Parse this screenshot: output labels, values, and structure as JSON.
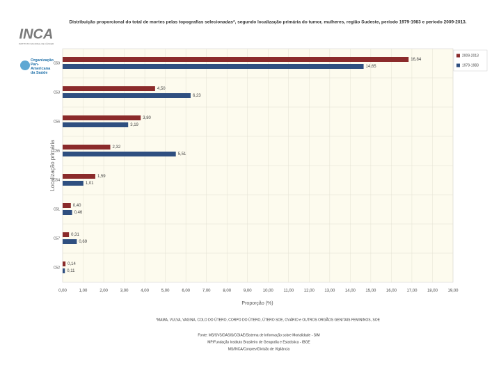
{
  "chart_data": {
    "type": "hbar",
    "title": "Distribuição proporcional do total de mortes pelas topografias selecionadas*, segundo localização primária do tumor, mulheres, região Sudeste, período 1979-1983 e período 2009-2013.",
    "x_label": "Proporção (%)",
    "y_label": "Localização primária",
    "categories": [
      "C50",
      "C53",
      "C56",
      "C55",
      "C54",
      "C51",
      "C57",
      "C52"
    ],
    "series": [
      {
        "name": "2009-2013",
        "color": "#8b2b2b",
        "values": [
          16.84,
          4.5,
          3.8,
          2.32,
          1.59,
          0.4,
          0.31,
          0.14
        ],
        "value_labels": [
          "16,84",
          "4,50",
          "3,80",
          "2,32",
          "1,59",
          "0,40",
          "0,31",
          "0,14"
        ]
      },
      {
        "name": "1979-1983",
        "color": "#2f4f80",
        "values": [
          14.65,
          6.23,
          3.19,
          5.51,
          1.01,
          0.46,
          0.69,
          0.11
        ],
        "value_labels": [
          "14,65",
          "6,23",
          "3,19",
          "5,51",
          "1,01",
          "0,46",
          "0,69",
          "0,11"
        ]
      }
    ],
    "xlim": [
      0,
      19
    ],
    "xticks": [
      {
        "value": 0,
        "label": "0,00"
      },
      {
        "value": 1,
        "label": "1,00"
      },
      {
        "value": 2,
        "label": "2,00"
      },
      {
        "value": 3,
        "label": "3,00"
      },
      {
        "value": 4,
        "label": "4,00"
      },
      {
        "value": 5,
        "label": "5,00"
      },
      {
        "value": 6,
        "label": "6,00"
      },
      {
        "value": 7,
        "label": "7,00"
      },
      {
        "value": 8,
        "label": "8,00"
      },
      {
        "value": 9,
        "label": "9,00"
      },
      {
        "value": 10,
        "label": "10,00"
      },
      {
        "value": 11,
        "label": "11,00"
      },
      {
        "value": 12,
        "label": "12,00"
      },
      {
        "value": 13,
        "label": "13,00"
      },
      {
        "value": 14,
        "label": "14,00"
      },
      {
        "value": 15,
        "label": "15,00"
      },
      {
        "value": 16,
        "label": "16,00"
      },
      {
        "value": 17,
        "label": "17,00"
      },
      {
        "value": 18,
        "label": "18,00"
      },
      {
        "value": 19,
        "label": "19,00"
      }
    ],
    "grid": true,
    "legend_position": "top-right",
    "footnote": "*MAMA, VULVA, VAGINA, COLO DO ÚTERO, CORPO DO ÚTERO, ÚTERO SOE, OVÁRIO e OUTROS ORGÃOS GENITAIS FEMININOS, SOE",
    "sources": [
      "Fonte: MS/SVS/DASIS/CGIAE/Sistema de Informação sobre Mortalidade - SIM",
      "MP/Fundação Instituto Brasileiro de Geografia e Estatística - IBGE",
      "MS/INCA/Conprev/Divisão de Vigilância"
    ]
  },
  "branding": {
    "inca": "INCA",
    "inca_sub": "INSTITUTO NACIONAL DE CÂNCER",
    "opas": "Organização Pan-Americana da Saúde"
  }
}
